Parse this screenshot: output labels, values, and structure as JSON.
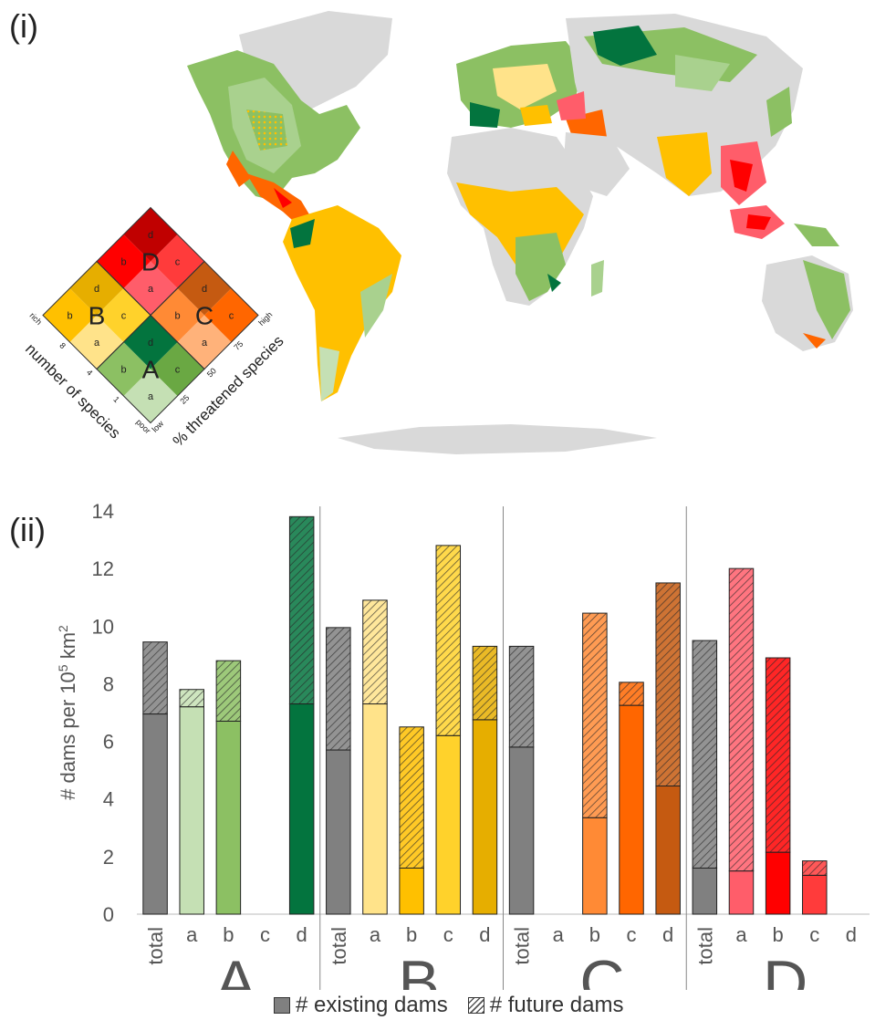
{
  "panel_i_label": "(i)",
  "panel_ii_label": "(ii)",
  "map_legend": {
    "groups": [
      {
        "name": "A",
        "cells": [
          "a",
          "b",
          "c",
          "d"
        ]
      },
      {
        "name": "B",
        "cells": [
          "a",
          "b",
          "c",
          "d"
        ]
      },
      {
        "name": "C",
        "cells": [
          "a",
          "b",
          "c",
          "d"
        ]
      },
      {
        "name": "D",
        "cells": [
          "a",
          "b",
          "c",
          "d"
        ]
      }
    ],
    "left_axis_title": "number of species",
    "left_axis_ticks": [
      "poor",
      "1",
      "4",
      "8",
      "rich"
    ],
    "right_axis_title": "% threatened species",
    "right_axis_ticks": [
      "low",
      "25",
      "50",
      "75",
      "high"
    ]
  },
  "chart_data": {
    "type": "bar",
    "stacked": true,
    "ylabel": "# dams per 10",
    "ylabel_superscript": "5",
    "ylabel_suffix": " km",
    "ylabel_suffix_superscript": "2",
    "ylim": [
      0,
      14
    ],
    "yticks": [
      0,
      2,
      4,
      6,
      8,
      10,
      12,
      14
    ],
    "groups": [
      {
        "name": "A",
        "categories": [
          "total",
          "a",
          "b",
          "c",
          "d"
        ],
        "existing": [
          6.95,
          7.2,
          6.7,
          0,
          7.3
        ],
        "future": [
          2.5,
          0.6,
          2.1,
          0,
          6.5
        ],
        "colors": [
          "#808080",
          "#c5e0b4",
          "#8cc063",
          "#6aa843",
          "#03743e"
        ]
      },
      {
        "name": "B",
        "categories": [
          "total",
          "a",
          "b",
          "c",
          "d"
        ],
        "existing": [
          5.7,
          7.3,
          1.6,
          6.2,
          6.75
        ],
        "future": [
          4.25,
          3.6,
          4.9,
          6.6,
          2.55
        ],
        "colors": [
          "#808080",
          "#ffe38a",
          "#ffc000",
          "#ffd22b",
          "#e6ae00"
        ]
      },
      {
        "name": "C",
        "categories": [
          "total",
          "a",
          "b",
          "c",
          "d"
        ],
        "existing": [
          5.8,
          0,
          3.35,
          7.25,
          4.45
        ],
        "future": [
          3.5,
          0,
          7.1,
          0.8,
          7.05
        ],
        "colors": [
          "#808080",
          "#ffb27a",
          "#ff8a35",
          "#ff6600",
          "#c55a11"
        ]
      },
      {
        "name": "D",
        "categories": [
          "total",
          "a",
          "b",
          "c",
          "d"
        ],
        "existing": [
          1.6,
          1.5,
          2.15,
          1.35,
          0
        ],
        "future": [
          7.9,
          10.5,
          6.75,
          0.5,
          0
        ],
        "colors": [
          "#808080",
          "#ff5d6a",
          "#ff0000",
          "#ff3b3b",
          "#c00000"
        ]
      }
    ],
    "legend": {
      "existing": "# existing dams",
      "future": "# future dams"
    },
    "grid": false
  }
}
